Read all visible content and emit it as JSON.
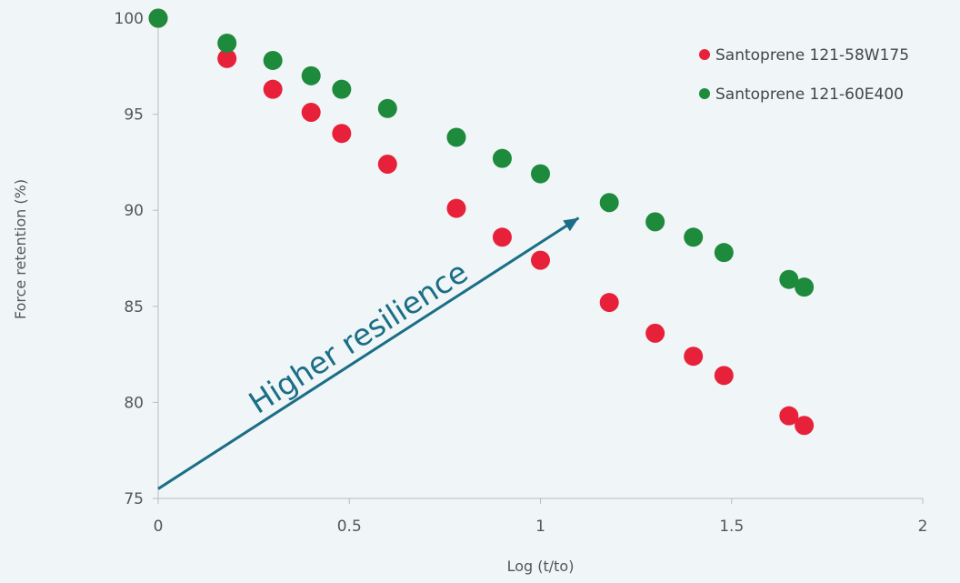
{
  "chart_data": {
    "type": "scatter",
    "xlabel": "Log (t/to)",
    "ylabel": "Force retention (%)",
    "xlim": [
      0,
      2
    ],
    "ylim": [
      75,
      100
    ],
    "x_ticks": [
      "0",
      "0.5",
      "1",
      "1.5",
      "2"
    ],
    "y_ticks": [
      "75",
      "80",
      "85",
      "90",
      "95",
      "100"
    ],
    "grid": false,
    "legend_position": "top-right",
    "annotation": {
      "text": "Higher resilience",
      "color": "#1a6e85",
      "from": [
        0,
        75.5
      ],
      "to": [
        1.1,
        89.6
      ]
    },
    "series": [
      {
        "name": "Santoprene 121-58W175",
        "color": "#e8213a",
        "x": [
          0,
          0.18,
          0.3,
          0.4,
          0.48,
          0.6,
          0.78,
          0.9,
          1.0,
          1.18,
          1.3,
          1.4,
          1.48,
          1.65,
          1.69
        ],
        "y": [
          100,
          97.9,
          96.3,
          95.1,
          94.0,
          92.4,
          90.1,
          88.6,
          87.4,
          85.2,
          83.6,
          82.4,
          81.4,
          79.3,
          78.8
        ]
      },
      {
        "name": "Santoprene 121-60E400",
        "color": "#1e8a3c",
        "x": [
          0,
          0.18,
          0.3,
          0.4,
          0.48,
          0.6,
          0.78,
          0.9,
          1.0,
          1.18,
          1.3,
          1.4,
          1.48,
          1.65,
          1.69
        ],
        "y": [
          100,
          98.7,
          97.8,
          97.0,
          96.3,
          95.3,
          93.8,
          92.7,
          91.9,
          90.4,
          89.4,
          88.6,
          87.8,
          86.4,
          86.0
        ]
      }
    ]
  }
}
